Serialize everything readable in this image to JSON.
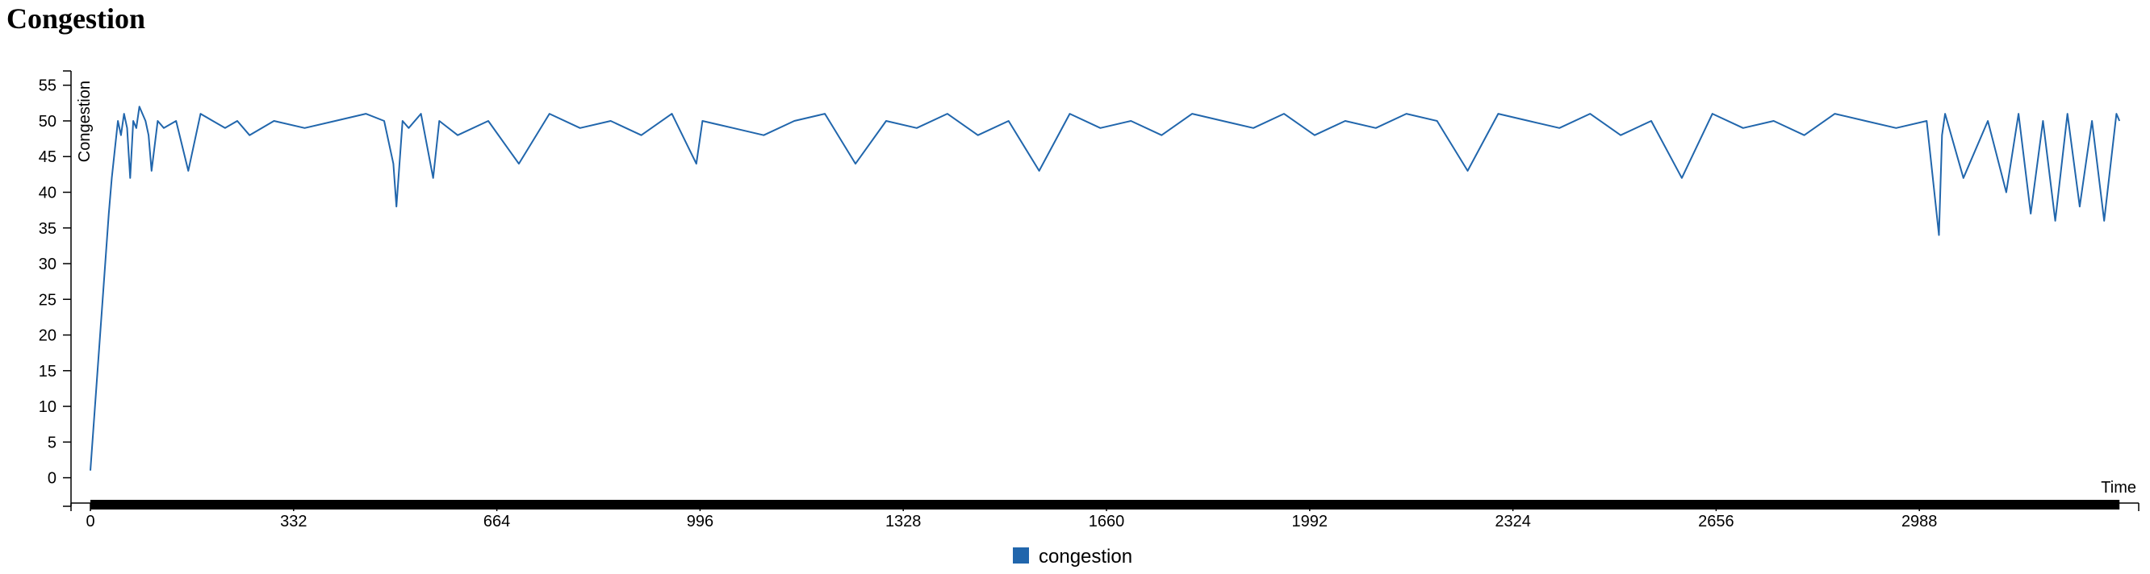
{
  "page": {
    "title": "Congestion"
  },
  "chart_data": {
    "type": "line",
    "title": "Congestion",
    "xlabel": "Time",
    "ylabel": "Congestion",
    "xlim": [
      0,
      3320
    ],
    "ylim": [
      -4,
      57
    ],
    "x_ticks": [
      0,
      332,
      664,
      996,
      1328,
      1660,
      1992,
      2324,
      2656,
      2988
    ],
    "x_tick_labels": [
      "0",
      "332",
      "664",
      "996",
      "1328",
      "1660",
      "1992",
      "2324",
      "2656",
      "2988"
    ],
    "y_ticks": [
      0,
      5,
      10,
      15,
      20,
      25,
      30,
      35,
      40,
      45,
      50,
      55
    ],
    "y_tick_labels": [
      "0",
      "5",
      "10",
      "15",
      "20",
      "25",
      "30",
      "35",
      "40",
      "45",
      "50",
      "55"
    ],
    "grid": false,
    "legend": "bottom-center",
    "colors": {
      "congestion": "#2166ac",
      "brush": "#000000"
    },
    "series": [
      {
        "name": "congestion",
        "x": [
          0,
          5,
          10,
          15,
          20,
          25,
          30,
          35,
          40,
          45,
          50,
          55,
          60,
          65,
          70,
          75,
          80,
          85,
          90,
          95,
          100,
          110,
          120,
          140,
          160,
          180,
          200,
          220,
          240,
          260,
          300,
          350,
          400,
          450,
          480,
          495,
          500,
          510,
          520,
          540,
          560,
          570,
          600,
          650,
          700,
          750,
          800,
          850,
          900,
          950,
          990,
          1000,
          1050,
          1100,
          1150,
          1200,
          1250,
          1300,
          1350,
          1400,
          1450,
          1500,
          1550,
          1600,
          1650,
          1700,
          1750,
          1800,
          1850,
          1900,
          1950,
          2000,
          2050,
          2100,
          2150,
          2200,
          2250,
          2300,
          2350,
          2400,
          2450,
          2500,
          2550,
          2600,
          2650,
          2700,
          2750,
          2800,
          2850,
          2900,
          2950,
          3000,
          3020,
          3025,
          3030,
          3060,
          3100,
          3130,
          3150,
          3170,
          3190,
          3210,
          3230,
          3250,
          3270,
          3290,
          3310,
          3315
        ],
        "y": [
          1,
          7,
          13,
          19,
          25,
          31,
          37,
          42,
          46,
          50,
          48,
          51,
          49,
          42,
          50,
          49,
          52,
          51,
          50,
          48,
          43,
          50,
          49,
          50,
          43,
          51,
          50,
          49,
          50,
          48,
          50,
          49,
          50,
          51,
          50,
          44,
          38,
          50,
          49,
          51,
          42,
          50,
          48,
          50,
          44,
          51,
          49,
          50,
          48,
          51,
          44,
          50,
          49,
          48,
          50,
          51,
          44,
          50,
          49,
          51,
          48,
          50,
          43,
          51,
          49,
          50,
          48,
          51,
          50,
          49,
          51,
          48,
          50,
          49,
          51,
          50,
          43,
          51,
          50,
          49,
          51,
          48,
          50,
          42,
          51,
          49,
          50,
          48,
          51,
          50,
          49,
          50,
          34,
          48,
          51,
          42,
          50,
          40,
          51,
          37,
          50,
          36,
          51,
          38,
          50,
          36,
          51,
          50
        ]
      }
    ]
  }
}
